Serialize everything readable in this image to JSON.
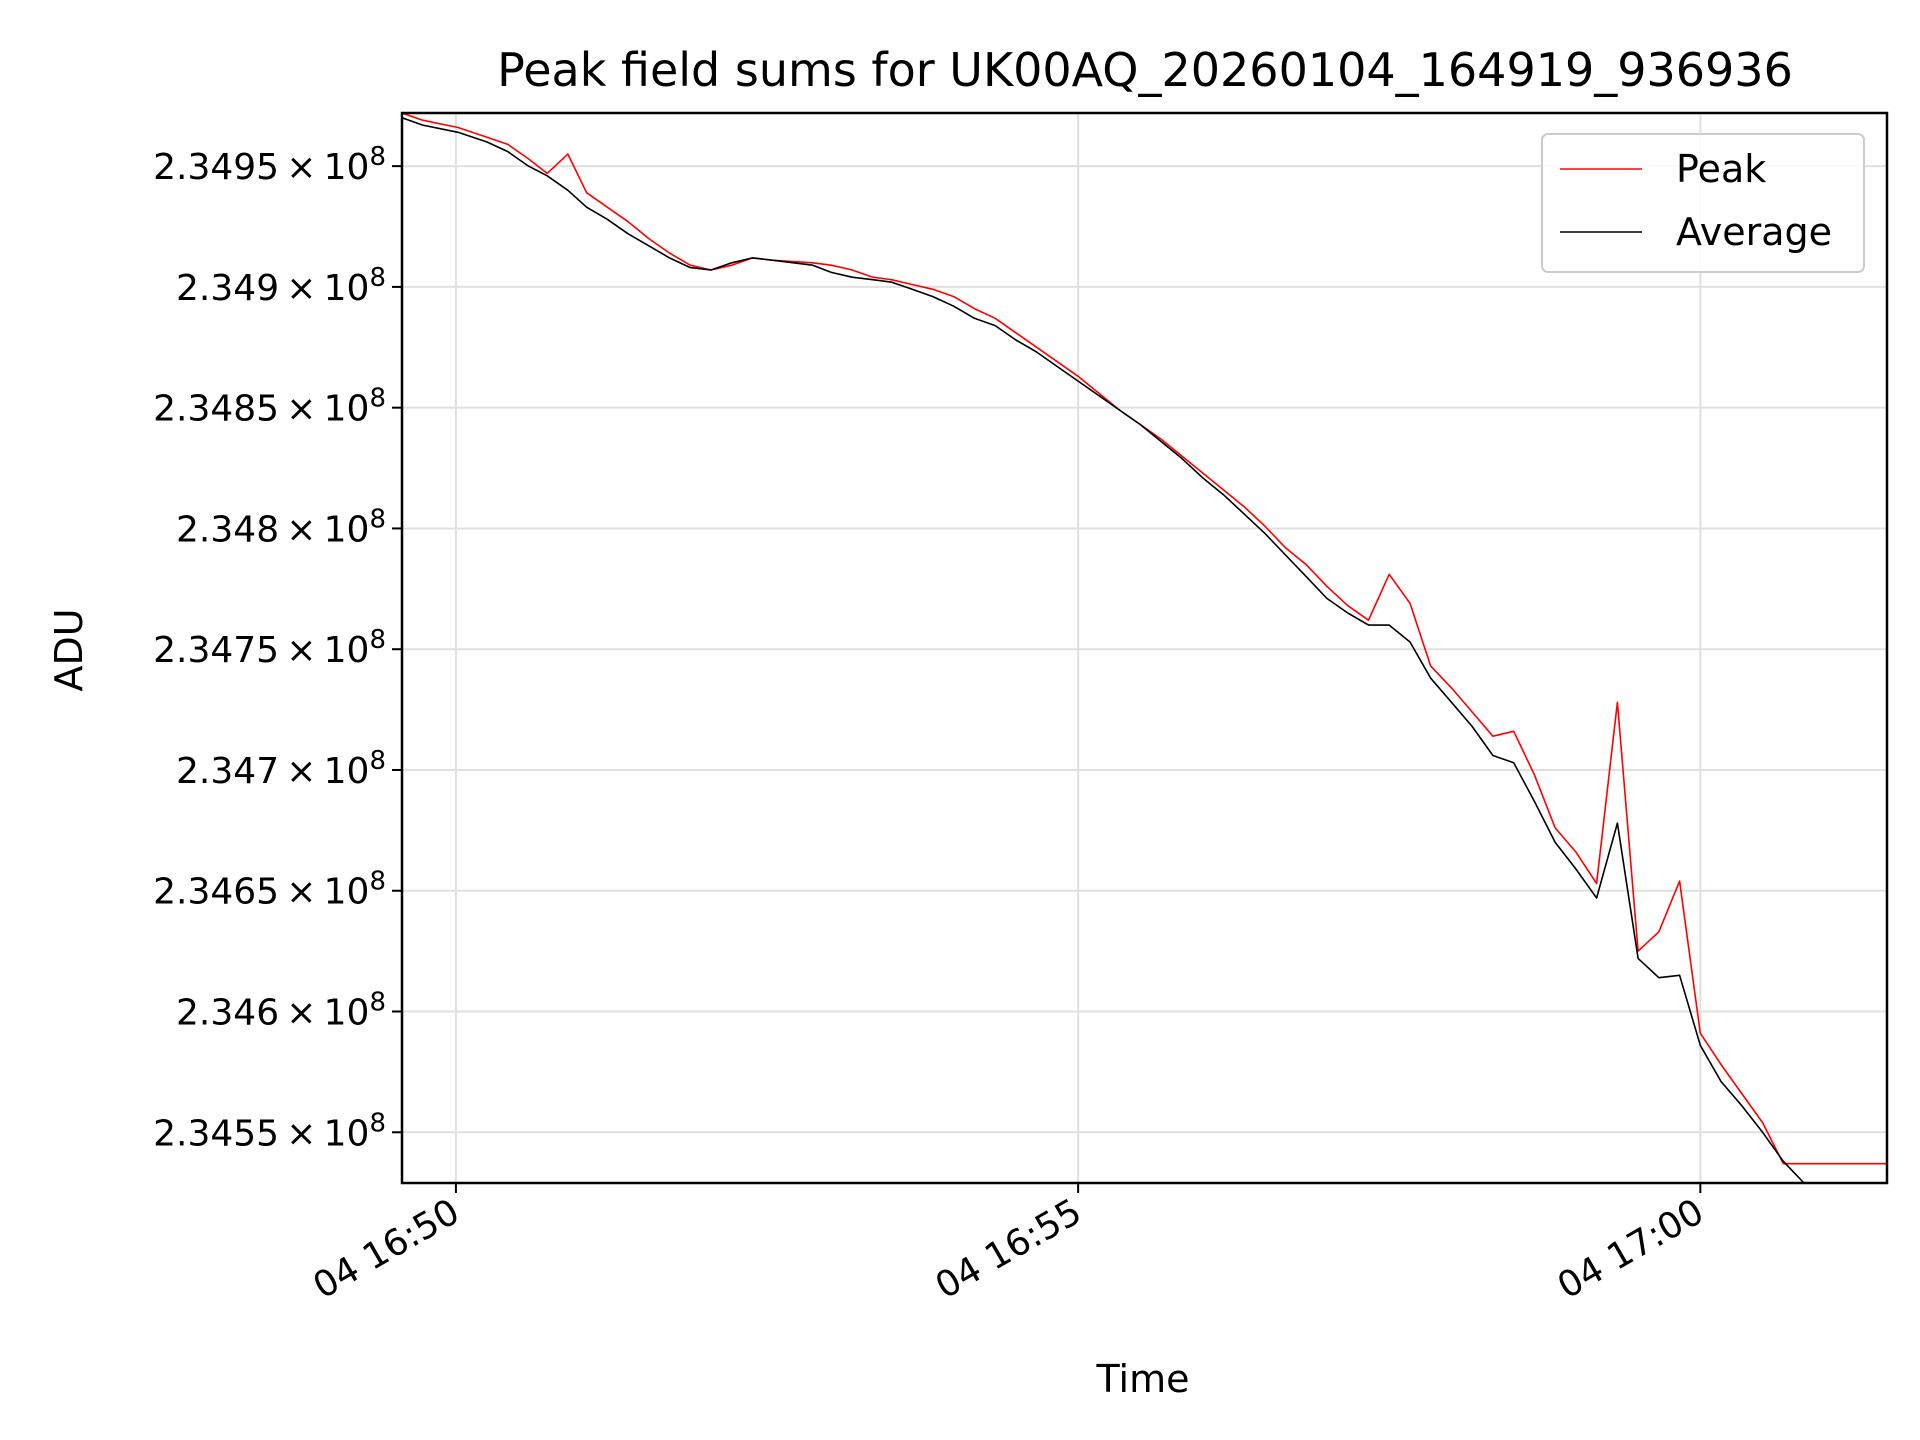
{
  "chart_data": {
    "type": "line",
    "title": "Peak field sums for UK00AQ_20260104_164919_936936",
    "xlabel": "Time",
    "ylabel": "ADU",
    "x_unit": "minutes",
    "x_ticks": [
      {
        "value": "16:50",
        "label": "04 16:50"
      },
      {
        "value": "16:55",
        "label": "04 16:55"
      },
      {
        "value": "17:00",
        "label": "04 17:00"
      }
    ],
    "y_ticks": [
      {
        "value": 234550000,
        "mantissa": "2.3455",
        "exp": "8"
      },
      {
        "value": 234600000,
        "mantissa": "2.346",
        "exp": "8"
      },
      {
        "value": 234650000,
        "mantissa": "2.3465",
        "exp": "8"
      },
      {
        "value": 234700000,
        "mantissa": "2.347",
        "exp": "8"
      },
      {
        "value": 234750000,
        "mantissa": "2.3475",
        "exp": "8"
      },
      {
        "value": 234800000,
        "mantissa": "2.348",
        "exp": "8"
      },
      {
        "value": 234850000,
        "mantissa": "2.3485",
        "exp": "8"
      },
      {
        "value": 234900000,
        "mantissa": "2.349",
        "exp": "8"
      },
      {
        "value": 234950000,
        "mantissa": "2.3495",
        "exp": "8"
      }
    ],
    "xlim": [
      "16:49:34",
      "17:01:30"
    ],
    "ylim": [
      234529000,
      234972000
    ],
    "grid": true,
    "legend_position": "top-right",
    "series": [
      {
        "name": "Peak",
        "color": "#ff0000",
        "points": [
          [
            "16:49:34",
            234972000
          ],
          [
            "16:49:44",
            234969000
          ],
          [
            "16:50:01",
            234966000
          ],
          [
            "16:50:15",
            234962000
          ],
          [
            "16:50:25",
            234959000
          ],
          [
            "16:50:35",
            234953000
          ],
          [
            "16:50:44",
            234947000
          ],
          [
            "16:50:54",
            234955000
          ],
          [
            "16:51:03",
            234939000
          ],
          [
            "16:51:13",
            234933000
          ],
          [
            "16:51:23",
            234927000
          ],
          [
            "16:51:33",
            234920000
          ],
          [
            "16:51:43",
            234914000
          ],
          [
            "16:51:53",
            234909000
          ],
          [
            "16:52:03",
            234907000
          ],
          [
            "16:52:13",
            234909000
          ],
          [
            "16:52:23",
            234912000
          ],
          [
            "16:52:33",
            234911000
          ],
          [
            "16:52:52",
            234910000
          ],
          [
            "16:53:01",
            234909000
          ],
          [
            "16:53:11",
            234907000
          ],
          [
            "16:53:21",
            234904000
          ],
          [
            "16:53:30",
            234903000
          ],
          [
            "16:53:40",
            234901000
          ],
          [
            "16:53:50",
            234899000
          ],
          [
            "16:54:00",
            234896000
          ],
          [
            "16:54:10",
            234891000
          ],
          [
            "16:54:20",
            234887000
          ],
          [
            "16:54:30",
            234881000
          ],
          [
            "16:54:40",
            234875000
          ],
          [
            "16:54:50",
            234869000
          ],
          [
            "16:55:00",
            234863000
          ],
          [
            "16:55:10",
            234856000
          ],
          [
            "16:55:20",
            234849000
          ],
          [
            "16:55:30",
            234843000
          ],
          [
            "16:55:40",
            234837000
          ],
          [
            "16:55:50",
            234830000
          ],
          [
            "16:56:00",
            234823000
          ],
          [
            "16:56:10",
            234816000
          ],
          [
            "16:56:20",
            234809000
          ],
          [
            "16:56:30",
            234801000
          ],
          [
            "16:56:40",
            234792000
          ],
          [
            "16:56:50",
            234785000
          ],
          [
            "16:57:00",
            234776000
          ],
          [
            "16:57:10",
            234768000
          ],
          [
            "16:57:20",
            234762000
          ],
          [
            "16:57:30",
            234781000
          ],
          [
            "16:57:40",
            234769000
          ],
          [
            "16:57:50",
            234743000
          ],
          [
            "16:58:00",
            234734000
          ],
          [
            "16:58:10",
            234724000
          ],
          [
            "16:58:20",
            234714000
          ],
          [
            "16:58:30",
            234716000
          ],
          [
            "16:58:40",
            234698000
          ],
          [
            "16:58:50",
            234676000
          ],
          [
            "16:59:00",
            234666000
          ],
          [
            "16:59:10",
            234653000
          ],
          [
            "16:59:20",
            234728000
          ],
          [
            "16:59:30",
            234625000
          ],
          [
            "16:59:40",
            234633000
          ],
          [
            "16:59:50",
            234654000
          ],
          [
            "17:00:00",
            234591000
          ],
          [
            "17:00:10",
            234578000
          ],
          [
            "17:00:20",
            234566000
          ],
          [
            "17:00:30",
            234554000
          ],
          [
            "17:00:40",
            234537000
          ],
          [
            "17:01:30",
            234537000
          ]
        ]
      },
      {
        "name": "Average",
        "color": "#000000",
        "points": [
          [
            "16:49:34",
            234970000
          ],
          [
            "16:49:44",
            234967000
          ],
          [
            "16:50:01",
            234964000
          ],
          [
            "16:50:15",
            234960000
          ],
          [
            "16:50:25",
            234956000
          ],
          [
            "16:50:35",
            234950000
          ],
          [
            "16:50:44",
            234946000
          ],
          [
            "16:50:54",
            234940000
          ],
          [
            "16:51:03",
            234933000
          ],
          [
            "16:51:13",
            234928000
          ],
          [
            "16:51:23",
            234922000
          ],
          [
            "16:51:33",
            234917000
          ],
          [
            "16:51:43",
            234912000
          ],
          [
            "16:51:53",
            234908000
          ],
          [
            "16:52:03",
            234907000
          ],
          [
            "16:52:13",
            234910000
          ],
          [
            "16:52:23",
            234912000
          ],
          [
            "16:52:33",
            234911000
          ],
          [
            "16:52:52",
            234909000
          ],
          [
            "16:53:01",
            234906000
          ],
          [
            "16:53:11",
            234904000
          ],
          [
            "16:53:21",
            234903000
          ],
          [
            "16:53:30",
            234902000
          ],
          [
            "16:53:40",
            234899000
          ],
          [
            "16:53:50",
            234896000
          ],
          [
            "16:54:00",
            234892000
          ],
          [
            "16:54:10",
            234887000
          ],
          [
            "16:54:20",
            234884000
          ],
          [
            "16:54:30",
            234878000
          ],
          [
            "16:54:40",
            234873000
          ],
          [
            "16:54:50",
            234867000
          ],
          [
            "16:55:00",
            234861000
          ],
          [
            "16:55:10",
            234855000
          ],
          [
            "16:55:20",
            234849000
          ],
          [
            "16:55:30",
            234843000
          ],
          [
            "16:55:40",
            234836000
          ],
          [
            "16:55:50",
            234829000
          ],
          [
            "16:56:00",
            234821000
          ],
          [
            "16:56:10",
            234814000
          ],
          [
            "16:56:20",
            234806000
          ],
          [
            "16:56:30",
            234798000
          ],
          [
            "16:56:40",
            234789000
          ],
          [
            "16:56:50",
            234780000
          ],
          [
            "16:57:00",
            234771000
          ],
          [
            "16:57:10",
            234765000
          ],
          [
            "16:57:20",
            234760000
          ],
          [
            "16:57:30",
            234760000
          ],
          [
            "16:57:40",
            234753000
          ],
          [
            "16:57:50",
            234738000
          ],
          [
            "16:58:00",
            234728000
          ],
          [
            "16:58:10",
            234718000
          ],
          [
            "16:58:20",
            234706000
          ],
          [
            "16:58:30",
            234703000
          ],
          [
            "16:58:40",
            234687000
          ],
          [
            "16:58:50",
            234670000
          ],
          [
            "16:59:00",
            234659000
          ],
          [
            "16:59:10",
            234647000
          ],
          [
            "16:59:20",
            234678000
          ],
          [
            "16:59:30",
            234622000
          ],
          [
            "16:59:40",
            234614000
          ],
          [
            "16:59:50",
            234615000
          ],
          [
            "17:00:00",
            234586000
          ],
          [
            "17:00:10",
            234571000
          ],
          [
            "17:00:20",
            234561000
          ],
          [
            "17:00:30",
            234550000
          ],
          [
            "17:00:40",
            234538000
          ],
          [
            "17:00:50",
            234529000
          ]
        ]
      }
    ]
  }
}
